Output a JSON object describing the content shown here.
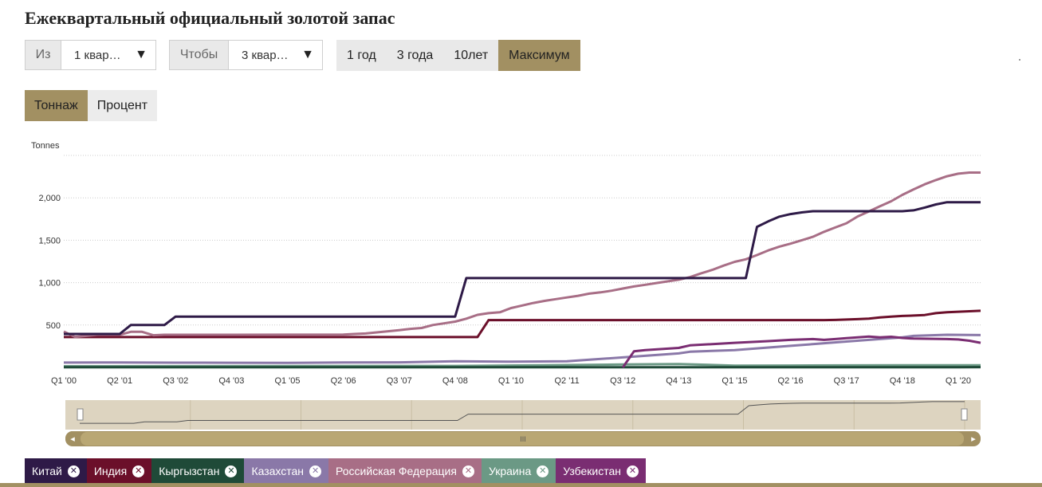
{
  "title": "Ежеквартальный официальный золотой запас",
  "from": {
    "label": "Из",
    "value": "1 квар…"
  },
  "to": {
    "label": "Чтобы",
    "value": "3 квар…"
  },
  "range_buttons": [
    {
      "label": "1 год",
      "active": false
    },
    {
      "label": "3 года",
      "active": false
    },
    {
      "label": "10лет",
      "active": false
    },
    {
      "label": "Максимум",
      "active": true
    }
  ],
  "mode_buttons": [
    {
      "label": "Тоннаж",
      "active": true
    },
    {
      "label": "Процент",
      "active": false
    }
  ],
  "navigator": {
    "handle_label": "III",
    "left_arrow": "◂",
    "right_arrow": "▸"
  },
  "legend": [
    {
      "label": "Китай",
      "color": "#2e1a47",
      "close": "✕"
    },
    {
      "label": "Индия",
      "color": "#6b0f2a",
      "close": "✕"
    },
    {
      "label": "Кыргызстан",
      "color": "#1f4a38",
      "close": "✕"
    },
    {
      "label": "Казахстан",
      "color": "#8a78a8",
      "close": "✕"
    },
    {
      "label": "Российская Федерация",
      "color": "#a86e86",
      "close": "✕"
    },
    {
      "label": "Украина",
      "color": "#6b9985",
      "close": "✕"
    },
    {
      "label": "Узбекистан",
      "color": "#7a2d72",
      "close": "✕"
    }
  ],
  "colors": {
    "accent": "#a29062",
    "navigator_bg": "#ddd4c0",
    "gridline": "#cccccc"
  },
  "chart_data": {
    "type": "line",
    "ylabel": "Tonnes",
    "ylim": [
      0,
      2500
    ],
    "y_ticks": [
      500,
      1000,
      1500,
      2000
    ],
    "y_tick_labels": [
      "500",
      "1,000",
      "1,500",
      "2,000"
    ],
    "grid": true,
    "x_ticks": [
      "Q1 '00",
      "Q2 '01",
      "Q3 '02",
      "Q4 '03",
      "Q1 '05",
      "Q2 '06",
      "Q3 '07",
      "Q4 '08",
      "Q1 '10",
      "Q2 '11",
      "Q3 '12",
      "Q4 '13",
      "Q1 '15",
      "Q2 '16",
      "Q3 '17",
      "Q4 '18",
      "Q1 '20"
    ],
    "series": [
      {
        "name": "Китай",
        "color": "#2e1a47",
        "points": [
          [
            "Q1 '00",
            395
          ],
          [
            "Q2 '01",
            395
          ],
          [
            "Q3 '01",
            500
          ],
          [
            "Q2 '02",
            500
          ],
          [
            "Q3 '02",
            600
          ],
          [
            "Q4 '08",
            600
          ],
          [
            "Q1 '09",
            1054
          ],
          [
            "Q2 '15",
            1054
          ],
          [
            "Q3 '15",
            1658
          ],
          [
            "Q4 '15",
            1722
          ],
          [
            "Q1 '16",
            1778
          ],
          [
            "Q2 '16",
            1808
          ],
          [
            "Q3 '16",
            1828
          ],
          [
            "Q4 '16",
            1842
          ],
          [
            "Q4 '18",
            1842
          ],
          [
            "Q1 '19",
            1852
          ],
          [
            "Q2 '19",
            1885
          ],
          [
            "Q3 '19",
            1922
          ],
          [
            "Q4 '19",
            1948
          ],
          [
            "Q3 '20",
            1948
          ]
        ]
      },
      {
        "name": "Индия",
        "color": "#6b0f2a",
        "points": [
          [
            "Q1 '00",
            358
          ],
          [
            "Q2 '09",
            358
          ],
          [
            "Q3 '09",
            558
          ],
          [
            "Q1 '17",
            558
          ],
          [
            "Q2 '17",
            560
          ],
          [
            "Q3 '17",
            565
          ],
          [
            "Q4 '17",
            570
          ],
          [
            "Q1 '18",
            575
          ],
          [
            "Q2 '18",
            590
          ],
          [
            "Q3 '18",
            600
          ],
          [
            "Q4 '18",
            607
          ],
          [
            "Q1 '19",
            612
          ],
          [
            "Q2 '19",
            618
          ],
          [
            "Q3 '19",
            640
          ],
          [
            "Q4 '19",
            650
          ],
          [
            "Q1 '20",
            657
          ],
          [
            "Q2 '20",
            663
          ],
          [
            "Q3 '20",
            668
          ]
        ]
      },
      {
        "name": "Кыргызстан",
        "color": "#1f4a38",
        "points": [
          [
            "Q1 '00",
            3
          ],
          [
            "Q1 '20",
            3
          ],
          [
            "Q3 '20",
            4
          ]
        ]
      },
      {
        "name": "Казахстан",
        "color": "#8a78a8",
        "points": [
          [
            "Q1 '00",
            57
          ],
          [
            "Q2 '01",
            59
          ],
          [
            "Q3 '02",
            56
          ],
          [
            "Q4 '03",
            55
          ],
          [
            "Q1 '05",
            54
          ],
          [
            "Q2 '06",
            58
          ],
          [
            "Q3 '07",
            60
          ],
          [
            "Q4 '08",
            72
          ],
          [
            "Q1 '10",
            68
          ],
          [
            "Q2 '11",
            72
          ],
          [
            "Q3 '12",
            118
          ],
          [
            "Q4 '13",
            165
          ],
          [
            "Q1 '14",
            185
          ],
          [
            "Q1 '15",
            205
          ],
          [
            "Q2 '16",
            255
          ],
          [
            "Q3 '17",
            305
          ],
          [
            "Q4 '18",
            355
          ],
          [
            "Q1 '19",
            372
          ],
          [
            "Q4 '19",
            385
          ],
          [
            "Q3 '20",
            382
          ]
        ]
      },
      {
        "name": "Российская Федерация",
        "color": "#a86e86",
        "points": [
          [
            "Q1 '00",
            423
          ],
          [
            "Q2 '00",
            360
          ],
          [
            "Q4 '00",
            385
          ],
          [
            "Q2 '01",
            385
          ],
          [
            "Q3 '01",
            420
          ],
          [
            "Q4 '01",
            420
          ],
          [
            "Q1 '02",
            380
          ],
          [
            "Q2 '02",
            385
          ],
          [
            "Q4 '03",
            385
          ],
          [
            "Q1 '05",
            386
          ],
          [
            "Q2 '06",
            388
          ],
          [
            "Q3 '06",
            395
          ],
          [
            "Q4 '06",
            400
          ],
          [
            "Q3 '07",
            440
          ],
          [
            "Q4 '07",
            455
          ],
          [
            "Q1 '08",
            465
          ],
          [
            "Q2 '08",
            500
          ],
          [
            "Q3 '08",
            520
          ],
          [
            "Q4 '08",
            540
          ],
          [
            "Q1 '09",
            575
          ],
          [
            "Q2 '09",
            620
          ],
          [
            "Q3 '09",
            640
          ],
          [
            "Q4 '09",
            650
          ],
          [
            "Q1 '10",
            700
          ],
          [
            "Q2 '10",
            730
          ],
          [
            "Q3 '10",
            760
          ],
          [
            "Q4 '10",
            785
          ],
          [
            "Q1 '11",
            805
          ],
          [
            "Q2 '11",
            825
          ],
          [
            "Q3 '11",
            845
          ],
          [
            "Q4 '11",
            870
          ],
          [
            "Q1 '12",
            885
          ],
          [
            "Q2 '12",
            905
          ],
          [
            "Q3 '12",
            930
          ],
          [
            "Q4 '12",
            955
          ],
          [
            "Q1 '13",
            975
          ],
          [
            "Q2 '13",
            995
          ],
          [
            "Q3 '13",
            1015
          ],
          [
            "Q4 '13",
            1035
          ],
          [
            "Q1 '14",
            1065
          ],
          [
            "Q2 '14",
            1110
          ],
          [
            "Q3 '14",
            1150
          ],
          [
            "Q4 '14",
            1200
          ],
          [
            "Q1 '15",
            1245
          ],
          [
            "Q2 '15",
            1275
          ],
          [
            "Q3 '15",
            1325
          ],
          [
            "Q4 '15",
            1380
          ],
          [
            "Q1 '16",
            1425
          ],
          [
            "Q2 '16",
            1460
          ],
          [
            "Q3 '16",
            1500
          ],
          [
            "Q4 '16",
            1540
          ],
          [
            "Q1 '17",
            1600
          ],
          [
            "Q2 '17",
            1650
          ],
          [
            "Q3 '17",
            1700
          ],
          [
            "Q4 '17",
            1780
          ],
          [
            "Q1 '18",
            1840
          ],
          [
            "Q2 '18",
            1900
          ],
          [
            "Q3 '18",
            1960
          ],
          [
            "Q4 '18",
            2035
          ],
          [
            "Q1 '19",
            2100
          ],
          [
            "Q2 '19",
            2160
          ],
          [
            "Q3 '19",
            2210
          ],
          [
            "Q4 '19",
            2255
          ],
          [
            "Q1 '20",
            2285
          ],
          [
            "Q2 '20",
            2298
          ],
          [
            "Q3 '20",
            2298
          ]
        ]
      },
      {
        "name": "Украина",
        "color": "#6b9985",
        "points": [
          [
            "Q1 '00",
            14
          ],
          [
            "Q4 '08",
            18
          ],
          [
            "Q2 '11",
            28
          ],
          [
            "Q3 '12",
            35
          ],
          [
            "Q4 '13",
            40
          ],
          [
            "Q1 '15",
            22
          ],
          [
            "Q2 '16",
            23
          ],
          [
            "Q3 '17",
            24
          ],
          [
            "Q4 '18",
            25
          ],
          [
            "Q3 '20",
            25
          ]
        ]
      },
      {
        "name": "Узбекистан",
        "color": "#7a2d72",
        "points": [
          [
            "Q3 '12",
            0
          ],
          [
            "Q4 '12",
            190
          ],
          [
            "Q1 '13",
            205
          ],
          [
            "Q4 '13",
            230
          ],
          [
            "Q1 '14",
            260
          ],
          [
            "Q1 '15",
            290
          ],
          [
            "Q4 '15",
            310
          ],
          [
            "Q2 '16",
            325
          ],
          [
            "Q4 '16",
            335
          ],
          [
            "Q1 '17",
            325
          ],
          [
            "Q2 '17",
            335
          ],
          [
            "Q3 '17",
            345
          ],
          [
            "Q4 '17",
            355
          ],
          [
            "Q1 '18",
            365
          ],
          [
            "Q2 '18",
            355
          ],
          [
            "Q3 '18",
            362
          ],
          [
            "Q4 '18",
            348
          ],
          [
            "Q1 '19",
            340
          ],
          [
            "Q4 '19",
            335
          ],
          [
            "Q1 '20",
            330
          ],
          [
            "Q2 '20",
            315
          ],
          [
            "Q3 '20",
            290
          ]
        ]
      }
    ]
  }
}
